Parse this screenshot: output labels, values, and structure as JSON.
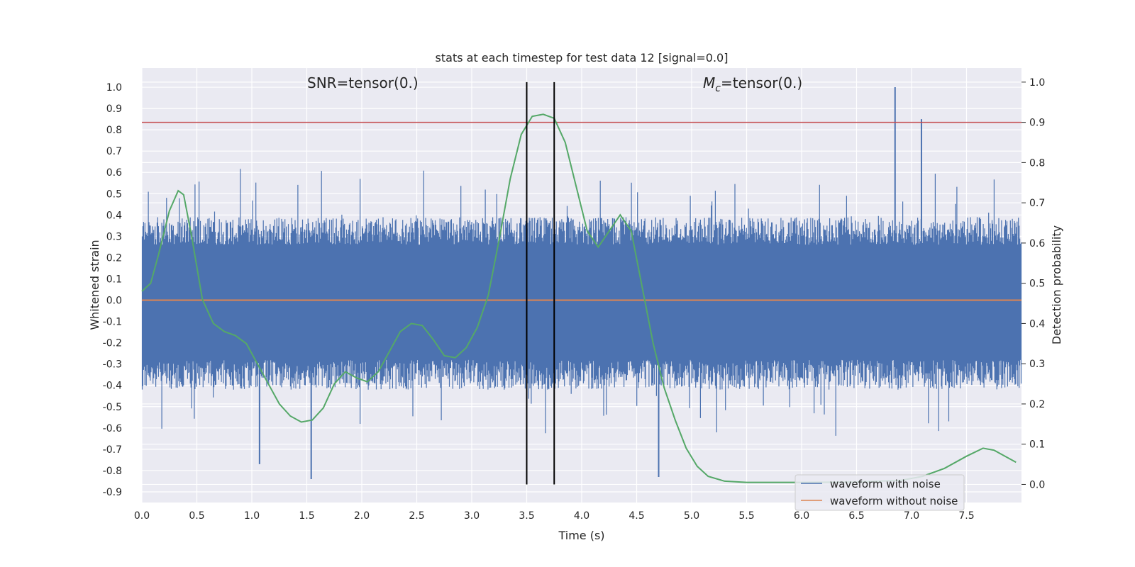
{
  "chart_data": {
    "type": "line",
    "title": "stats at each timestep for test data 12 [signal=0.0]",
    "xlabel": "Time (s)",
    "ylabel": "Whitened strain",
    "y2label": "Detection probability",
    "xlim": [
      0.0,
      8.0
    ],
    "ylim": [
      -0.95,
      1.09
    ],
    "y2lim": [
      -0.045,
      1.035
    ],
    "x_ticks": [
      "0.0",
      "0.5",
      "1.0",
      "1.5",
      "2.0",
      "2.5",
      "3.0",
      "3.5",
      "4.0",
      "4.5",
      "5.0",
      "5.5",
      "6.0",
      "6.5",
      "7.0",
      "7.5"
    ],
    "y_ticks": [
      "1.0",
      "0.9",
      "0.8",
      "0.7",
      "0.6",
      "0.5",
      "0.4",
      "0.3",
      "0.2",
      "0.1",
      "0.0",
      "-0.1",
      "-0.2",
      "-0.3",
      "-0.4",
      "-0.5",
      "-0.6",
      "-0.7",
      "-0.8",
      "-0.9"
    ],
    "y2_ticks": [
      "1.0",
      "0.9",
      "0.8",
      "0.7",
      "0.6",
      "0.5",
      "0.4",
      "0.3",
      "0.2",
      "0.1",
      "0.0"
    ],
    "annotations": {
      "snr": "SNR=tensor(0.)",
      "mc_symbol": "M",
      "mc_sub": "c",
      "mc_value": "=tensor(0.)"
    },
    "legend": {
      "placement": "lower-right",
      "entries": [
        "waveform with noise",
        "waveform without noise"
      ]
    },
    "colors": {
      "noise": "#4c72b0",
      "clean": "#dd8452",
      "probability": "#55a868",
      "threshold": "#c44e52",
      "window": "#000000",
      "background": "#eaeaf2",
      "grid": "#ffffff"
    },
    "series": [
      {
        "name": "waveform with noise",
        "axis": "left",
        "notes_shape": "dense noise, typical |y| ~0.3-0.45, peaks near 0.7",
        "peaks": [
          {
            "x": 6.85,
            "y": 1.0
          },
          {
            "x": 7.09,
            "y": 0.85
          },
          {
            "x": 1.54,
            "y": -0.84
          },
          {
            "x": 4.7,
            "y": -0.83
          },
          {
            "x": 1.07,
            "y": -0.77
          }
        ]
      },
      {
        "name": "waveform without noise",
        "axis": "left",
        "x": [
          0.0,
          8.0
        ],
        "y": [
          0.0,
          0.0
        ]
      },
      {
        "axis": "right",
        "x": [
          0.0,
          0.08,
          0.15,
          0.25,
          0.33,
          0.38,
          0.45,
          0.55,
          0.65,
          0.75,
          0.85,
          0.95,
          1.05,
          1.15,
          1.25,
          1.35,
          1.45,
          1.55,
          1.65,
          1.75,
          1.85,
          1.95,
          2.05,
          2.15,
          2.25,
          2.35,
          2.45,
          2.55,
          2.65,
          2.75,
          2.85,
          2.95,
          3.05,
          3.15,
          3.25,
          3.35,
          3.45,
          3.55,
          3.65,
          3.75,
          3.85,
          3.95,
          4.05,
          4.15,
          4.25,
          4.35,
          4.45,
          4.55,
          4.65,
          4.75,
          4.85,
          4.95,
          5.05,
          5.15,
          5.3,
          5.5,
          6.0,
          6.5,
          6.9,
          7.1,
          7.3,
          7.5,
          7.65,
          7.75,
          7.85,
          7.95
        ],
        "y": [
          0.48,
          0.5,
          0.57,
          0.68,
          0.73,
          0.72,
          0.62,
          0.46,
          0.4,
          0.38,
          0.37,
          0.35,
          0.3,
          0.25,
          0.2,
          0.17,
          0.155,
          0.16,
          0.19,
          0.25,
          0.28,
          0.265,
          0.255,
          0.28,
          0.33,
          0.38,
          0.4,
          0.395,
          0.36,
          0.32,
          0.315,
          0.34,
          0.39,
          0.47,
          0.61,
          0.76,
          0.87,
          0.915,
          0.92,
          0.91,
          0.85,
          0.74,
          0.63,
          0.59,
          0.63,
          0.67,
          0.63,
          0.49,
          0.35,
          0.24,
          0.16,
          0.09,
          0.045,
          0.02,
          0.008,
          0.005,
          0.005,
          0.006,
          0.01,
          0.02,
          0.04,
          0.07,
          0.09,
          0.085,
          0.07,
          0.055
        ]
      }
    ],
    "threshold": {
      "axis": "right",
      "y": 0.9
    },
    "window_lines": {
      "x": [
        3.5,
        3.75
      ],
      "y_range_right": [
        0.0,
        1.0
      ]
    }
  }
}
